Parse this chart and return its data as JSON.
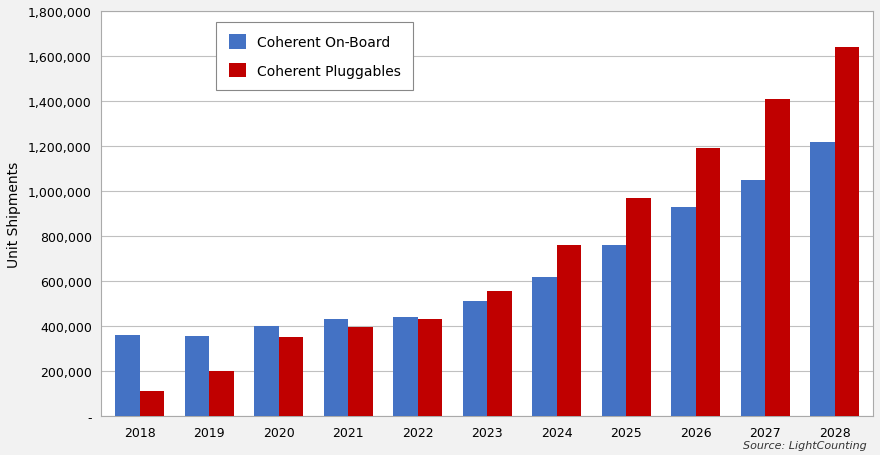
{
  "years": [
    2018,
    2019,
    2020,
    2021,
    2022,
    2023,
    2024,
    2025,
    2026,
    2027,
    2028
  ],
  "coherent_onboard": [
    360000,
    355000,
    400000,
    430000,
    440000,
    510000,
    620000,
    760000,
    930000,
    1050000,
    1220000
  ],
  "coherent_pluggables": [
    110000,
    200000,
    350000,
    395000,
    430000,
    555000,
    760000,
    970000,
    1190000,
    1410000,
    1640000
  ],
  "bar_color_onboard": "#4472C4",
  "bar_color_pluggables": "#C00000",
  "ylabel": "Unit Shipments",
  "ylim": [
    0,
    1800000
  ],
  "yticks": [
    0,
    200000,
    400000,
    600000,
    800000,
    1000000,
    1200000,
    1400000,
    1600000,
    1800000
  ],
  "ytick_labels": [
    "-",
    "200,000",
    "400,000",
    "600,000",
    "800,000",
    "1,000,000",
    "1,200,000",
    "1,400,000",
    "1,600,000",
    "1,800,000"
  ],
  "legend_onboard": "Coherent On-Board",
  "legend_pluggables": "Coherent Pluggables",
  "source_text": "Source: LightCounting",
  "bg_outer": "#F2F2F2",
  "bg_plot": "#FFFFFF",
  "grid_color": "#C0C0C0",
  "border_color": "#AAAAAA"
}
